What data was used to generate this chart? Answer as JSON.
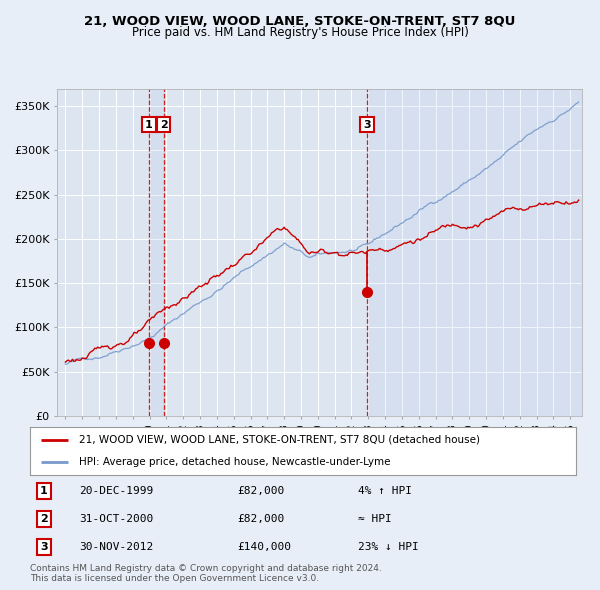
{
  "title": "21, WOOD VIEW, WOOD LANE, STOKE-ON-TRENT, ST7 8QU",
  "subtitle": "Price paid vs. HM Land Registry's House Price Index (HPI)",
  "bg_color": "#e8eef8",
  "plot_bg_color": "#dde6f0",
  "grid_color": "#ffffff",
  "sale_color": "#cc0000",
  "hpi_color": "#7799cc",
  "vline_color": "#cc0000",
  "sale_dates_num": [
    1999.96,
    2000.83,
    2012.92
  ],
  "sale_prices": [
    82000,
    82000,
    140000
  ],
  "label_sale": "21, WOOD VIEW, WOOD LANE, STOKE-ON-TRENT, ST7 8QU (detached house)",
  "label_hpi": "HPI: Average price, detached house, Newcastle-under-Lyme",
  "legend1_date": "20-DEC-1999",
  "legend1_price": "£82,000",
  "legend1_rel": "4% ↑ HPI",
  "legend2_date": "31-OCT-2000",
  "legend2_price": "£82,000",
  "legend2_rel": "≈ HPI",
  "legend3_date": "30-NOV-2012",
  "legend3_price": "£140,000",
  "legend3_rel": "23% ↓ HPI",
  "footer": "Contains HM Land Registry data © Crown copyright and database right 2024.\nThis data is licensed under the Open Government Licence v3.0.",
  "ylim": [
    0,
    370000
  ],
  "yticks": [
    0,
    50000,
    100000,
    150000,
    200000,
    250000,
    300000,
    350000
  ],
  "xlim_start": 1994.5,
  "xlim_end": 2025.7,
  "xtick_start": 1995,
  "xtick_end": 2025
}
